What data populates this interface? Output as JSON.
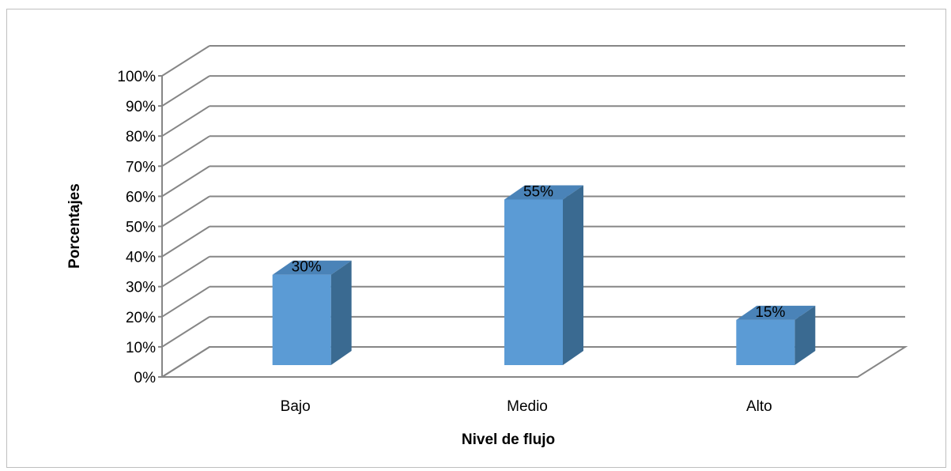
{
  "chart_data": {
    "type": "bar",
    "categories": [
      "Bajo",
      "Medio",
      "Alto"
    ],
    "values": [
      30,
      55,
      15
    ],
    "data_labels": [
      "30%",
      "55%",
      "15%"
    ],
    "xlabel": "Nivel de flujo",
    "ylabel": "Porcentajes",
    "ylim": [
      0,
      100
    ],
    "y_ticks": [
      "0%",
      "10%",
      "20%",
      "30%",
      "40%",
      "50%",
      "60%",
      "70%",
      "80%",
      "90%",
      "100%"
    ],
    "grid": true,
    "three_d": true,
    "colors": {
      "bar_front": "#5b9bd5",
      "bar_side": "#3a6a91",
      "bar_top": "#4a83b8",
      "grid": "#868686"
    }
  }
}
